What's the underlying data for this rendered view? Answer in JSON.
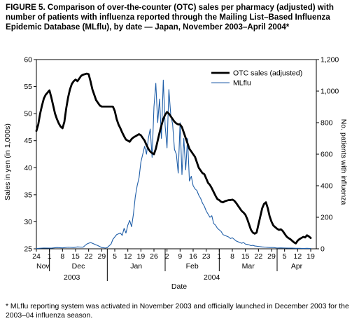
{
  "title": "FIGURE 5. Comparison of over-the-counter (OTC) sales per pharmacy (adjusted) with number of patients with influenza reported through the Mailing List–Based Influenza Epidemic Database (MLflu), by date — Japan, November 2003–April 2004*",
  "footnote": "* MLflu reporting system was activated in November 2003 and officially launched in December 2003 for the 2003–04 influenza season.",
  "chart_data": {
    "type": "line",
    "title": "",
    "xlabel": "Date",
    "ylabel": "Sales in yen (in 1,000s)",
    "y2label": "No. patients with influenza",
    "ylim": [
      25,
      60
    ],
    "y2lim": [
      0,
      1200
    ],
    "yticks": [
      25,
      30,
      35,
      40,
      45,
      50,
      55,
      60
    ],
    "y2ticks": [
      0,
      200,
      400,
      600,
      800,
      1000,
      1200
    ],
    "y2ticklabels": [
      "0",
      "200",
      "400",
      "600",
      "800",
      "1,000",
      "1,200"
    ],
    "xlim": [
      0,
      150
    ],
    "grid": false,
    "legend": "top-right",
    "x_axis": {
      "ticks": [
        {
          "x": 0,
          "label": "24"
        },
        {
          "x": 7,
          "label": "1"
        },
        {
          "x": 14,
          "label": "8"
        },
        {
          "x": 21,
          "label": "15"
        },
        {
          "x": 28,
          "label": "22"
        },
        {
          "x": 35,
          "label": "29"
        },
        {
          "x": 42,
          "label": "5"
        },
        {
          "x": 49,
          "label": "12"
        },
        {
          "x": 56,
          "label": "19"
        },
        {
          "x": 63,
          "label": "26"
        },
        {
          "x": 70,
          "label": "2"
        },
        {
          "x": 77,
          "label": "9"
        },
        {
          "x": 84,
          "label": "16"
        },
        {
          "x": 91,
          "label": "23"
        },
        {
          "x": 98,
          "label": "1"
        },
        {
          "x": 105,
          "label": "8"
        },
        {
          "x": 112,
          "label": "15"
        },
        {
          "x": 119,
          "label": "22"
        },
        {
          "x": 126,
          "label": "29"
        },
        {
          "x": 133,
          "label": "5"
        },
        {
          "x": 140,
          "label": "12"
        },
        {
          "x": 147,
          "label": "19"
        }
      ],
      "months": [
        {
          "label": "Nov",
          "start": 0,
          "end": 7
        },
        {
          "label": "Dec",
          "start": 7,
          "end": 38
        },
        {
          "label": "Jan",
          "start": 38,
          "end": 69
        },
        {
          "label": "Feb",
          "start": 69,
          "end": 98
        },
        {
          "label": "Mar",
          "start": 98,
          "end": 129
        },
        {
          "label": "Apr",
          "start": 129,
          "end": 150
        }
      ],
      "years": [
        {
          "label": "2003",
          "start": 0,
          "end": 38
        },
        {
          "label": "2004",
          "start": 38,
          "end": 150
        }
      ]
    },
    "series": [
      {
        "name": "OTC sales (adjusted)",
        "axis": "left",
        "color": "#000000",
        "points": [
          [
            0,
            46.8
          ],
          [
            1,
            48
          ],
          [
            2,
            50
          ],
          [
            3,
            51.5
          ],
          [
            4,
            52.8
          ],
          [
            5,
            53.5
          ],
          [
            6,
            53.9
          ],
          [
            7,
            54.3
          ],
          [
            8,
            53
          ],
          [
            9,
            51.5
          ],
          [
            10,
            50
          ],
          [
            11,
            49
          ],
          [
            12,
            48.2
          ],
          [
            13,
            47.6
          ],
          [
            14,
            47.3
          ],
          [
            15,
            48.5
          ],
          [
            16,
            51
          ],
          [
            17,
            53
          ],
          [
            18,
            54.5
          ],
          [
            19,
            55.5
          ],
          [
            20,
            56
          ],
          [
            21,
            56.3
          ],
          [
            22,
            56
          ],
          [
            23,
            56.5
          ],
          [
            24,
            57
          ],
          [
            25,
            57.2
          ],
          [
            26,
            57.3
          ],
          [
            27,
            57.4
          ],
          [
            28,
            57.3
          ],
          [
            29,
            56
          ],
          [
            30,
            54.5
          ],
          [
            31,
            53.5
          ],
          [
            32,
            52.5
          ],
          [
            33,
            52
          ],
          [
            34,
            51.5
          ],
          [
            35,
            51.3
          ],
          [
            36,
            51.3
          ],
          [
            37,
            51.3
          ],
          [
            38,
            51.3
          ],
          [
            39,
            51.3
          ],
          [
            40,
            51.3
          ],
          [
            41,
            51.3
          ],
          [
            42,
            50.5
          ],
          [
            43,
            49
          ],
          [
            44,
            48
          ],
          [
            45,
            47.3
          ],
          [
            46,
            46.5
          ],
          [
            47,
            45.8
          ],
          [
            48,
            45.2
          ],
          [
            49,
            45
          ],
          [
            50,
            44.8
          ],
          [
            51,
            45.3
          ],
          [
            52,
            45.6
          ],
          [
            53,
            45.8
          ],
          [
            54,
            46
          ],
          [
            55,
            46.2
          ],
          [
            56,
            46
          ],
          [
            57,
            45.5
          ],
          [
            58,
            45
          ],
          [
            59,
            44.2
          ],
          [
            60,
            43.5
          ],
          [
            61,
            43
          ],
          [
            62,
            42.7
          ],
          [
            63,
            42.5
          ],
          [
            64,
            43.5
          ],
          [
            65,
            45
          ],
          [
            66,
            46.5
          ],
          [
            67,
            47.8
          ],
          [
            68,
            49
          ],
          [
            69,
            49.8
          ],
          [
            70,
            50.3
          ],
          [
            71,
            50
          ],
          [
            72,
            49.5
          ],
          [
            73,
            49
          ],
          [
            74,
            48.5
          ],
          [
            75,
            48.2
          ],
          [
            76,
            48
          ],
          [
            77,
            48
          ],
          [
            78,
            47.5
          ],
          [
            79,
            46.5
          ],
          [
            80,
            45.5
          ],
          [
            81,
            44.5
          ],
          [
            82,
            43.5
          ],
          [
            83,
            43
          ],
          [
            84,
            42.5
          ],
          [
            85,
            42
          ],
          [
            86,
            41
          ],
          [
            87,
            40
          ],
          [
            88,
            39.5
          ],
          [
            89,
            39
          ],
          [
            90,
            38.8
          ],
          [
            91,
            38
          ],
          [
            92,
            37.2
          ],
          [
            93,
            36.8
          ],
          [
            94,
            36.2
          ],
          [
            95,
            35.5
          ],
          [
            96,
            34.8
          ],
          [
            97,
            34.2
          ],
          [
            98,
            34
          ],
          [
            99,
            33.7
          ],
          [
            100,
            33.6
          ],
          [
            101,
            33.8
          ],
          [
            102,
            33.9
          ],
          [
            103,
            34
          ],
          [
            104,
            34
          ],
          [
            105,
            34.1
          ],
          [
            106,
            33.9
          ],
          [
            107,
            33.5
          ],
          [
            108,
            33
          ],
          [
            109,
            32.5
          ],
          [
            110,
            32
          ],
          [
            111,
            31.7
          ],
          [
            112,
            31.3
          ],
          [
            113,
            30.5
          ],
          [
            114,
            29.5
          ],
          [
            115,
            28.5
          ],
          [
            116,
            28
          ],
          [
            117,
            27.8
          ],
          [
            118,
            28
          ],
          [
            119,
            29.5
          ],
          [
            120,
            31
          ],
          [
            121,
            32.5
          ],
          [
            122,
            33.3
          ],
          [
            123,
            33.6
          ],
          [
            124,
            32.5
          ],
          [
            125,
            31
          ],
          [
            126,
            30
          ],
          [
            127,
            29.3
          ],
          [
            128,
            29
          ],
          [
            129,
            28.7
          ],
          [
            130,
            28.5
          ],
          [
            131,
            28.6
          ],
          [
            132,
            28.3
          ],
          [
            133,
            27.8
          ],
          [
            134,
            27.3
          ],
          [
            135,
            27
          ],
          [
            136,
            26.8
          ],
          [
            137,
            26.5
          ],
          [
            138,
            26.2
          ],
          [
            139,
            26
          ],
          [
            140,
            26.5
          ],
          [
            141,
            26.8
          ],
          [
            142,
            27
          ],
          [
            143,
            27.2
          ],
          [
            144,
            27.1
          ],
          [
            145,
            27.5
          ],
          [
            146,
            27.3
          ],
          [
            147,
            27
          ]
        ]
      },
      {
        "name": "MLflu",
        "axis": "right",
        "color": "#1f5ea8",
        "points": [
          [
            0,
            2
          ],
          [
            4,
            5
          ],
          [
            8,
            4
          ],
          [
            11,
            8
          ],
          [
            14,
            6
          ],
          [
            17,
            10
          ],
          [
            20,
            8
          ],
          [
            22,
            12
          ],
          [
            25,
            10
          ],
          [
            27,
            30
          ],
          [
            29,
            40
          ],
          [
            31,
            30
          ],
          [
            33,
            20
          ],
          [
            35,
            8
          ],
          [
            37,
            5
          ],
          [
            38,
            8
          ],
          [
            40,
            30
          ],
          [
            41,
            60
          ],
          [
            43,
            90
          ],
          [
            45,
            100
          ],
          [
            46,
            85
          ],
          [
            47,
            130
          ],
          [
            48,
            100
          ],
          [
            49,
            150
          ],
          [
            50,
            180
          ],
          [
            51,
            140
          ],
          [
            52,
            220
          ],
          [
            53,
            330
          ],
          [
            54,
            400
          ],
          [
            55,
            450
          ],
          [
            56,
            550
          ],
          [
            57,
            600
          ],
          [
            58,
            650
          ],
          [
            59,
            600
          ],
          [
            60,
            700
          ],
          [
            61,
            760
          ],
          [
            62,
            580
          ],
          [
            63,
            900
          ],
          [
            64,
            1050
          ],
          [
            65,
            800
          ],
          [
            66,
            950
          ],
          [
            67,
            700
          ],
          [
            68,
            1070
          ],
          [
            69,
            780
          ],
          [
            70,
            640
          ],
          [
            71,
            1010
          ],
          [
            72,
            850
          ],
          [
            73,
            790
          ],
          [
            74,
            630
          ],
          [
            75,
            600
          ],
          [
            76,
            480
          ],
          [
            77,
            800
          ],
          [
            78,
            470
          ],
          [
            79,
            700
          ],
          [
            80,
            500
          ],
          [
            81,
            700
          ],
          [
            82,
            430
          ],
          [
            83,
            460
          ],
          [
            84,
            400
          ],
          [
            85,
            380
          ],
          [
            86,
            370
          ],
          [
            87,
            340
          ],
          [
            88,
            320
          ],
          [
            89,
            290
          ],
          [
            90,
            270
          ],
          [
            91,
            240
          ],
          [
            92,
            220
          ],
          [
            93,
            200
          ],
          [
            94,
            210
          ],
          [
            95,
            160
          ],
          [
            96,
            150
          ],
          [
            97,
            130
          ],
          [
            98,
            120
          ],
          [
            99,
            110
          ],
          [
            100,
            90
          ],
          [
            101,
            85
          ],
          [
            102,
            80
          ],
          [
            103,
            75
          ],
          [
            104,
            65
          ],
          [
            105,
            70
          ],
          [
            106,
            60
          ],
          [
            107,
            50
          ],
          [
            108,
            45
          ],
          [
            109,
            40
          ],
          [
            110,
            35
          ],
          [
            111,
            40
          ],
          [
            112,
            30
          ],
          [
            113,
            28
          ],
          [
            114,
            25
          ],
          [
            115,
            20
          ],
          [
            116,
            22
          ],
          [
            117,
            18
          ],
          [
            119,
            15
          ],
          [
            121,
            12
          ],
          [
            123,
            10
          ],
          [
            125,
            8
          ],
          [
            127,
            8
          ],
          [
            129,
            5
          ],
          [
            131,
            6
          ],
          [
            133,
            5
          ],
          [
            135,
            4
          ],
          [
            137,
            4
          ],
          [
            139,
            3
          ],
          [
            141,
            3
          ],
          [
            143,
            2
          ],
          [
            145,
            3
          ],
          [
            147,
            2
          ]
        ]
      }
    ]
  }
}
